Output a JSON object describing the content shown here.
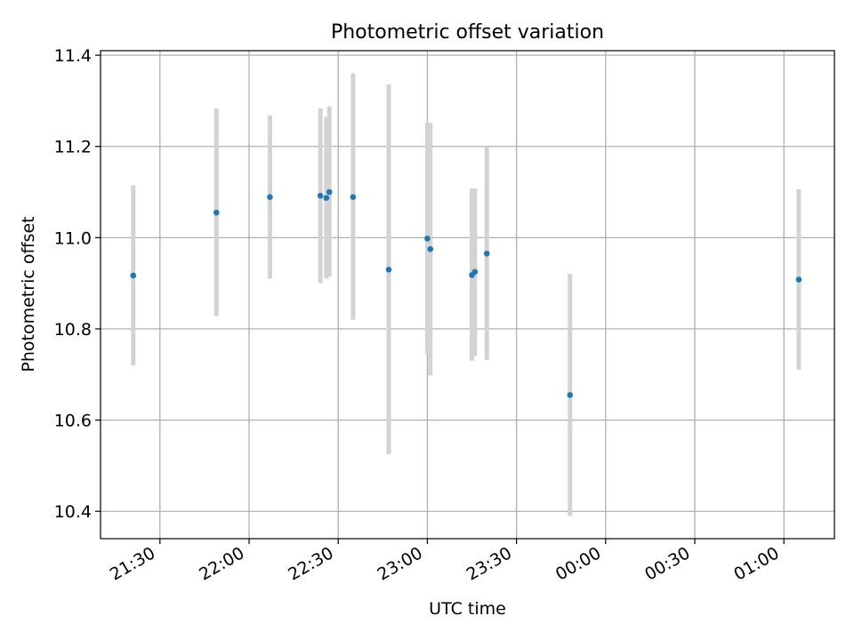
{
  "chart_data": {
    "type": "scatter",
    "title": "Photometric offset variation",
    "xlabel": "UTC time",
    "ylabel": "Photometric offset",
    "xlim": [
      "21:10",
      "01:17"
    ],
    "ylim": [
      10.34,
      11.41
    ],
    "x_ticks": [
      "21:30",
      "22:00",
      "22:30",
      "23:00",
      "23:30",
      "00:00",
      "00:30",
      "01:00"
    ],
    "y_ticks": [
      10.4,
      10.6,
      10.8,
      11.0,
      11.2,
      11.4
    ],
    "y_tick_labels": [
      "10.4",
      "10.6",
      "10.8",
      "11.0",
      "11.2",
      "11.4"
    ],
    "grid": true,
    "colors": {
      "point": "#1f77b4",
      "error_bar": "#d3d3d3",
      "grid": "#b0b0b0"
    },
    "series": [
      {
        "points": [
          {
            "x": "21:21",
            "y": 10.917,
            "ylow": 10.72,
            "yhigh": 11.115
          },
          {
            "x": "21:49",
            "y": 11.055,
            "ylow": 10.828,
            "yhigh": 11.283
          },
          {
            "x": "22:07",
            "y": 11.089,
            "ylow": 10.91,
            "yhigh": 11.268
          },
          {
            "x": "22:24",
            "y": 11.092,
            "ylow": 10.9,
            "yhigh": 11.283
          },
          {
            "x": "22:26",
            "y": 11.087,
            "ylow": 10.91,
            "yhigh": 11.265
          },
          {
            "x": "22:27",
            "y": 11.1,
            "ylow": 10.915,
            "yhigh": 11.288
          },
          {
            "x": "22:35",
            "y": 11.089,
            "ylow": 10.82,
            "yhigh": 11.36
          },
          {
            "x": "22:47",
            "y": 10.93,
            "ylow": 10.525,
            "yhigh": 11.336
          },
          {
            "x": "23:00",
            "y": 10.998,
            "ylow": 10.745,
            "yhigh": 11.252
          },
          {
            "x": "23:01",
            "y": 10.975,
            "ylow": 10.698,
            "yhigh": 11.252
          },
          {
            "x": "23:15",
            "y": 10.918,
            "ylow": 10.73,
            "yhigh": 11.108
          },
          {
            "x": "23:16",
            "y": 10.925,
            "ylow": 10.74,
            "yhigh": 11.108
          },
          {
            "x": "23:20",
            "y": 10.965,
            "ylow": 10.732,
            "yhigh": 11.2
          },
          {
            "x": "23:48",
            "y": 10.655,
            "ylow": 10.39,
            "yhigh": 10.921
          },
          {
            "x": "01:05",
            "y": 10.908,
            "ylow": 10.71,
            "yhigh": 11.106
          }
        ]
      }
    ]
  }
}
